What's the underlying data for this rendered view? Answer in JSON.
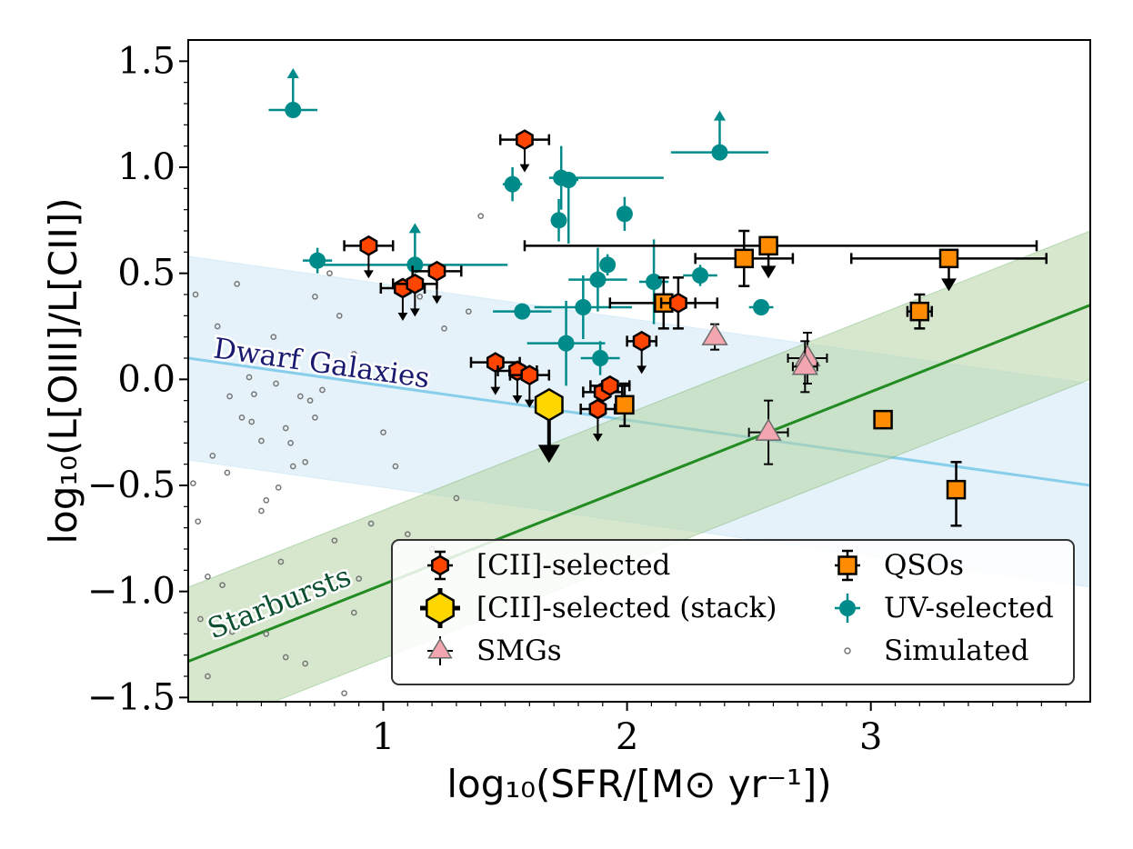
{
  "chart_data": {
    "type": "scatter",
    "title": "",
    "xlabel": "log₁₀(SFR/[M⊙ yr⁻¹])",
    "ylabel": "log₁₀(L[OIII]/L[CII])",
    "xlim": [
      0.2,
      3.9
    ],
    "ylim": [
      -1.52,
      1.6
    ],
    "xticks": [
      1,
      2,
      3
    ],
    "xtick_labels": [
      "1",
      "2",
      "3"
    ],
    "yticks": [
      -1.5,
      -1.0,
      -0.5,
      0.0,
      0.5,
      1.0,
      1.5
    ],
    "ytick_labels": [
      "−1.5",
      "−1.0",
      "−0.5",
      "0.0",
      "0.5",
      "1.0",
      "1.5"
    ],
    "colors": {
      "cii": "#ff4500",
      "stack": "#ffd700",
      "qso": "#ff8c00",
      "smg": "#f4a6b0",
      "uv": "#008b8b",
      "sim": "#777777",
      "dwarf_line": "#87ceeb",
      "dwarf_band": "#d3e9f5",
      "starburst_line": "#228b22",
      "starburst_band": "#b5d4a4",
      "dwarf_text": "#191970",
      "starburst_text": "#0b4f2f"
    },
    "bands": [
      {
        "name": "Dwarf Galaxies",
        "x": [
          0.2,
          3.9
        ],
        "y": [
          0.1,
          -0.5
        ],
        "half_width": 0.48
      },
      {
        "name": "Starbursts",
        "x": [
          0.2,
          3.9
        ],
        "y": [
          -1.33,
          0.35
        ],
        "half_width": 0.35
      }
    ],
    "series": [
      {
        "name": "[CII]-selected",
        "marker": "hexagon",
        "points": [
          {
            "x": 0.94,
            "y": 0.63,
            "xerr": 0.1,
            "uplim": true
          },
          {
            "x": 1.08,
            "y": 0.43,
            "xerr": 0.09,
            "uplim": true
          },
          {
            "x": 1.13,
            "y": 0.45,
            "xerr": 0.09,
            "uplim": true
          },
          {
            "x": 1.22,
            "y": 0.51,
            "xerr": 0.1,
            "uplim": true
          },
          {
            "x": 1.58,
            "y": 1.13,
            "xerr": 0.1,
            "uplim": true
          },
          {
            "x": 1.46,
            "y": 0.08,
            "xerr": 0.1,
            "uplim": true
          },
          {
            "x": 1.55,
            "y": 0.04,
            "xerr": 0.08,
            "uplim": true
          },
          {
            "x": 1.6,
            "y": 0.02,
            "xerr": 0.08,
            "uplim": true
          },
          {
            "x": 1.88,
            "y": -0.14,
            "xerr": 0.07,
            "uplim": true
          },
          {
            "x": 1.9,
            "y": -0.06,
            "xerr": 0.08,
            "uplim": false
          },
          {
            "x": 1.93,
            "y": -0.03,
            "xerr": 0.08,
            "uplim": false
          },
          {
            "x": 2.06,
            "y": 0.18,
            "xerr": 0.06,
            "uplim": true
          },
          {
            "x": 2.21,
            "y": 0.36,
            "xerr": 0.07,
            "yerr": 0.12,
            "uplim": false
          }
        ]
      },
      {
        "name": "[CII]-selected (stack)",
        "marker": "hexagon-large",
        "points": [
          {
            "x": 1.68,
            "y": -0.12,
            "uplim": true
          }
        ]
      },
      {
        "name": "QSOs",
        "marker": "square",
        "points": [
          {
            "x": 1.99,
            "y": -0.12,
            "yerr": 0.1
          },
          {
            "x": 2.15,
            "y": 0.36,
            "xerr": 0.22,
            "yerr": 0.12
          },
          {
            "x": 2.48,
            "y": 0.57,
            "xerr": 0.2,
            "yerr": 0.13
          },
          {
            "x": 2.58,
            "y": 0.63,
            "xerr": [
              1.0,
              1.1
            ],
            "uplim": true
          },
          {
            "x": 3.05,
            "y": -0.19
          },
          {
            "x": 3.2,
            "y": 0.32,
            "xerr": 0.05,
            "yerr": 0.08
          },
          {
            "x": 3.32,
            "y": 0.57,
            "xerr": 0.4,
            "uplim": true
          },
          {
            "x": 3.35,
            "y": -0.52,
            "yerr": [
              0.17,
              0.13
            ]
          }
        ]
      },
      {
        "name": "SMGs",
        "marker": "triangle",
        "points": [
          {
            "x": 2.36,
            "y": 0.2,
            "yerr": 0.06
          },
          {
            "x": 2.58,
            "y": -0.25,
            "xerr": 0.08,
            "yerr": 0.15
          },
          {
            "x": 2.74,
            "y": 0.1,
            "xerr": 0.08,
            "yerr": 0.12
          },
          {
            "x": 2.73,
            "y": 0.06,
            "xerr": 0.05,
            "yerr": 0.12
          }
        ]
      },
      {
        "name": "UV-selected",
        "marker": "circle",
        "points": [
          {
            "x": 0.63,
            "y": 1.27,
            "xerr": 0.1,
            "lolim": true
          },
          {
            "x": 0.73,
            "y": 0.56,
            "xerr": 0.06,
            "yerr": 0.06
          },
          {
            "x": 1.13,
            "y": 0.54,
            "xerr": 0.38,
            "lolim": true
          },
          {
            "x": 1.53,
            "y": 0.92,
            "xerr": 0.04,
            "yerr": 0.08
          },
          {
            "x": 1.57,
            "y": 0.32,
            "xerr": 0.12
          },
          {
            "x": 1.72,
            "y": 0.75,
            "yerr": 0.1
          },
          {
            "x": 1.73,
            "y": 0.95,
            "xerr": [
              0.05,
              0.42
            ],
            "yerr": 0.15
          },
          {
            "x": 1.76,
            "y": 0.94,
            "xerr": 0.04,
            "yerr": [
              0.3,
              0.03
            ]
          },
          {
            "x": 1.75,
            "y": 0.17,
            "xerr": 0.16,
            "yerr": 0.2
          },
          {
            "x": 1.82,
            "y": 0.34,
            "xerr": 0.2,
            "yerr": 0.15
          },
          {
            "x": 1.88,
            "y": 0.47,
            "xerr": 0.12,
            "yerr": 0.15
          },
          {
            "x": 1.89,
            "y": 0.1,
            "xerr": 0.08,
            "yerr": 0.08
          },
          {
            "x": 1.92,
            "y": 0.54,
            "xerr": 0.03,
            "yerr": 0.05
          },
          {
            "x": 1.99,
            "y": 0.78,
            "xerr": 0.03,
            "yerr": 0.08
          },
          {
            "x": 2.11,
            "y": 0.46,
            "xerr": 0.06,
            "yerr": 0.2
          },
          {
            "x": 2.3,
            "y": 0.49,
            "xerr": 0.07,
            "yerr": 0.05
          },
          {
            "x": 2.38,
            "y": 1.07,
            "xerr": 0.2,
            "lolim": true
          },
          {
            "x": 2.55,
            "y": 0.34,
            "xerr": [
              0.05,
              0.05
            ]
          }
        ]
      },
      {
        "name": "Simulated",
        "marker": "small-open-circle",
        "points": [
          {
            "x": 0.22,
            "y": -0.49
          },
          {
            "x": 0.24,
            "y": -0.67
          },
          {
            "x": 0.25,
            "y": -1.13
          },
          {
            "x": 0.28,
            "y": -1.4
          },
          {
            "x": 0.3,
            "y": -0.36
          },
          {
            "x": 0.32,
            "y": 0.25
          },
          {
            "x": 0.33,
            "y": 0.16
          },
          {
            "x": 0.37,
            "y": -0.08
          },
          {
            "x": 0.38,
            "y": -1.19
          },
          {
            "x": 0.42,
            "y": -0.18
          },
          {
            "x": 0.45,
            "y": 0.01
          },
          {
            "x": 0.46,
            "y": -0.2
          },
          {
            "x": 0.5,
            "y": -0.29
          },
          {
            "x": 0.52,
            "y": -0.57
          },
          {
            "x": 0.55,
            "y": 0.2
          },
          {
            "x": 0.56,
            "y": -0.02
          },
          {
            "x": 0.57,
            "y": -0.51
          },
          {
            "x": 0.58,
            "y": -0.86
          },
          {
            "x": 0.6,
            "y": -0.23
          },
          {
            "x": 0.62,
            "y": -0.3
          },
          {
            "x": 0.63,
            "y": -0.41
          },
          {
            "x": 0.66,
            "y": -0.08
          },
          {
            "x": 0.68,
            "y": -0.39
          },
          {
            "x": 0.7,
            "y": -0.1
          },
          {
            "x": 0.72,
            "y": -0.18
          },
          {
            "x": 0.75,
            "y": -0.05
          },
          {
            "x": 0.78,
            "y": 0.5
          },
          {
            "x": 0.8,
            "y": -0.76
          },
          {
            "x": 0.82,
            "y": 0.3
          },
          {
            "x": 0.88,
            "y": 0.12
          },
          {
            "x": 0.9,
            "y": -0.94
          },
          {
            "x": 0.95,
            "y": -0.68
          },
          {
            "x": 1.0,
            "y": -0.25
          },
          {
            "x": 1.05,
            "y": -0.41
          },
          {
            "x": 1.1,
            "y": -0.73
          },
          {
            "x": 1.15,
            "y": 0.39
          },
          {
            "x": 1.2,
            "y": -0.8
          },
          {
            "x": 1.25,
            "y": 0.24
          },
          {
            "x": 1.3,
            "y": -0.56
          },
          {
            "x": 1.35,
            "y": 0.32
          },
          {
            "x": 1.4,
            "y": 0.77
          },
          {
            "x": 0.23,
            "y": 0.4
          },
          {
            "x": 0.28,
            "y": -0.93
          },
          {
            "x": 0.34,
            "y": -0.97
          },
          {
            "x": 0.4,
            "y": 0.45
          },
          {
            "x": 0.52,
            "y": -1.2
          },
          {
            "x": 0.6,
            "y": -1.31
          },
          {
            "x": 0.68,
            "y": -1.34
          },
          {
            "x": 0.72,
            "y": 0.39
          },
          {
            "x": 0.84,
            "y": -1.48
          },
          {
            "x": 0.88,
            "y": -1.1
          },
          {
            "x": 0.5,
            "y": -0.62
          },
          {
            "x": 0.36,
            "y": -0.44
          },
          {
            "x": 0.47,
            "y": -0.07
          }
        ]
      }
    ],
    "legend": {
      "location": "lower-right",
      "entries": [
        [
          "[CII]-selected",
          "QSOs"
        ],
        [
          "[CII]-selected (stack)",
          "UV-selected"
        ],
        [
          "SMGs",
          "Simulated"
        ]
      ]
    }
  }
}
